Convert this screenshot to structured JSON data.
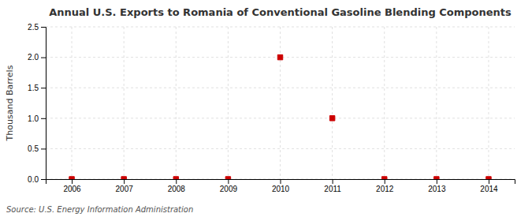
{
  "chart_data": {
    "type": "scatter",
    "title": "Annual U.S. Exports to Romania of Conventional Gasoline Blending Components",
    "ylabel": "Thousand Barrels",
    "annotations": [
      "Source: U.S. Energy Information Administration"
    ],
    "x": [
      2006,
      2007,
      2008,
      2009,
      2010,
      2011,
      2012,
      2013,
      2014
    ],
    "values": [
      0,
      0,
      0,
      0,
      2.0,
      1.0,
      0,
      0,
      0
    ],
    "color": "#cc0000",
    "marker": "square",
    "xlim": [
      2005.5,
      2014.5
    ],
    "xticks": [
      2006,
      2007,
      2008,
      2009,
      2010,
      2011,
      2012,
      2013,
      2014
    ],
    "ylim": [
      0,
      2.5
    ],
    "yticks": [
      {
        "value": 0.0,
        "label": "0.0"
      },
      0.5,
      {
        "value": 1.0,
        "label": "1.0"
      },
      1.5,
      {
        "value": 2.0,
        "label": "2.0"
      },
      2.5
    ],
    "grid": true
  }
}
